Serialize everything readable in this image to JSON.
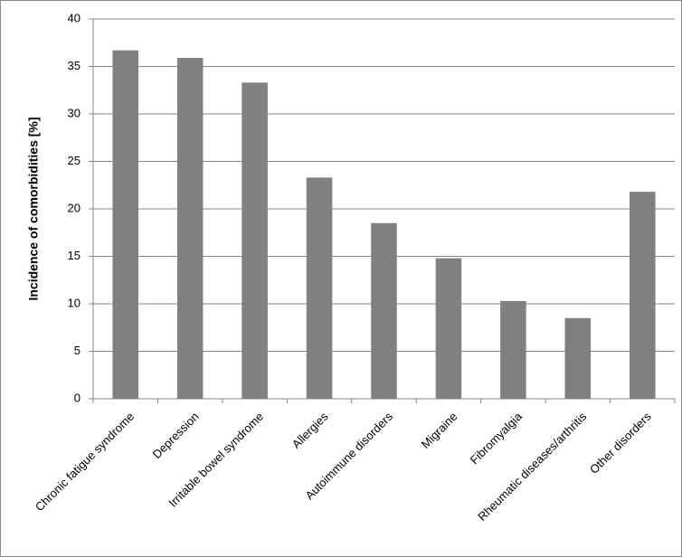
{
  "chart_data": {
    "type": "bar",
    "y_label": "Incidence of comorbidities [%]",
    "categories": [
      "Chronic fatigue syndrome",
      "Depression",
      "Irritable bowel syndrome",
      "Allergies",
      "Autoimmune disorders",
      "Migraine",
      "Fibromyalgia",
      "Rheumatic diseases/arthritis",
      "Other disorders"
    ],
    "values": [
      36.7,
      35.9,
      33.3,
      23.3,
      18.5,
      14.8,
      10.3,
      8.5,
      21.8
    ],
    "color": "#808080",
    "ylim": [
      0,
      40
    ],
    "yticks": [
      0,
      5,
      10,
      15,
      20,
      25,
      30,
      35,
      40
    ],
    "grid": true
  }
}
